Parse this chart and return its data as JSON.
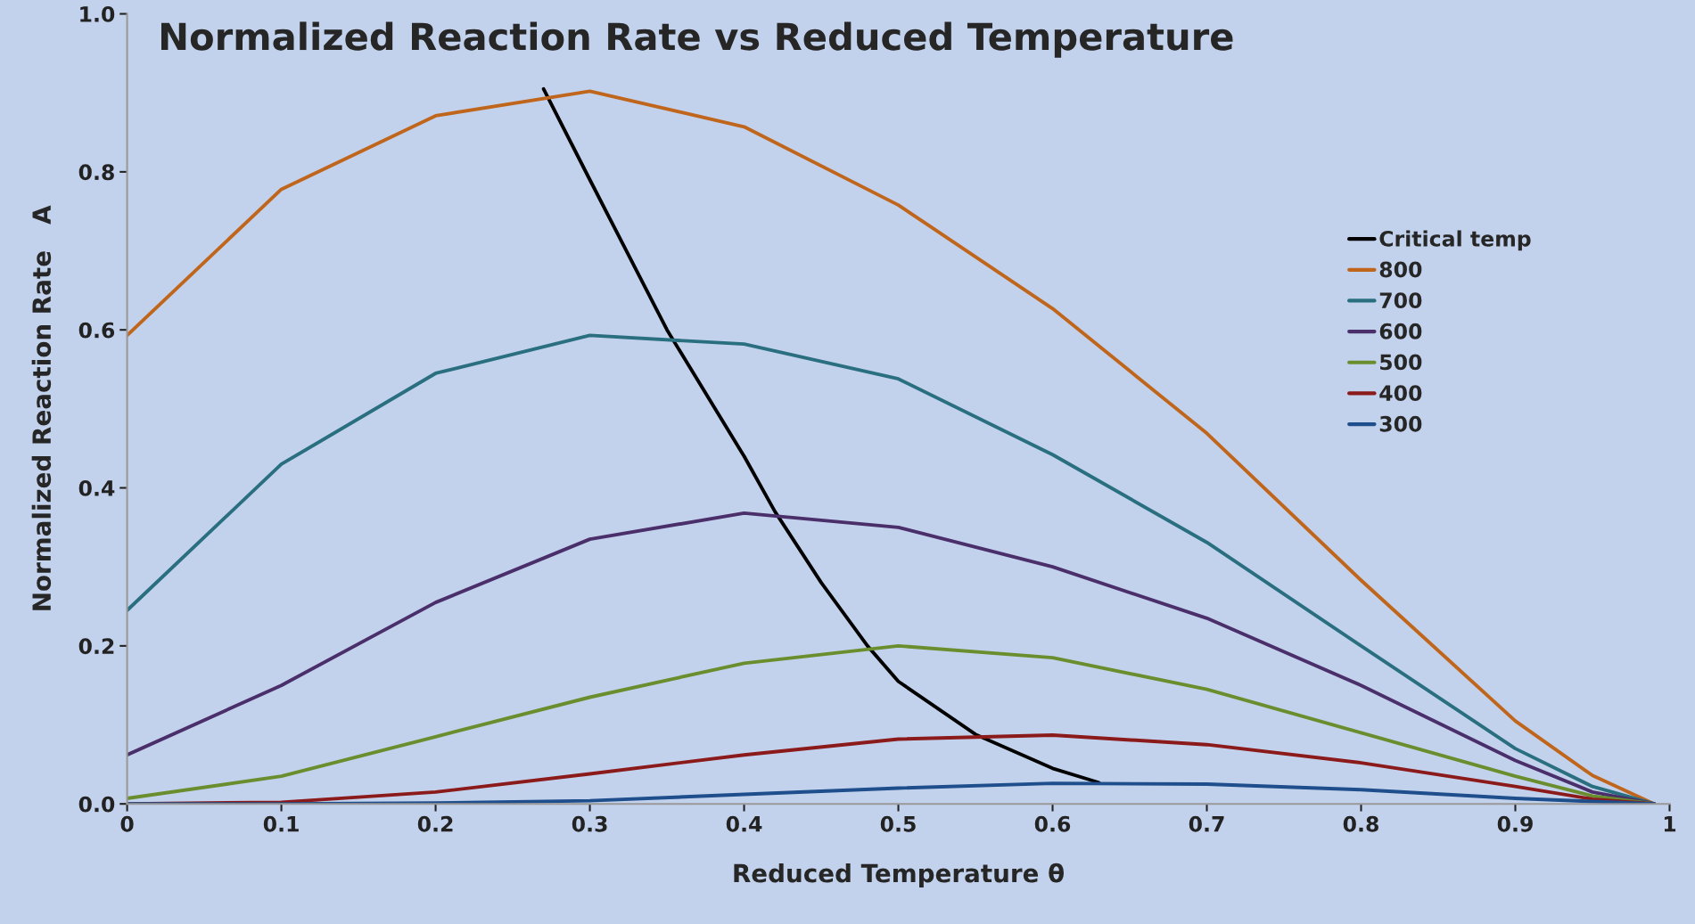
{
  "chart_data": {
    "type": "line",
    "title": "Normalized Reaction Rate vs Reduced Temperature",
    "xlabel": "Reduced Temperature θ",
    "ylabel": "Normalized Reaction Rate   A",
    "x": [
      0,
      0.1,
      0.2,
      0.3,
      0.4,
      0.5,
      0.6,
      0.7,
      0.8,
      0.9,
      0.95,
      0.99
    ],
    "series": [
      {
        "name": "Critical temp",
        "color": "#000000",
        "x": [
          0.27,
          0.3,
          0.35,
          0.4,
          0.42,
          0.45,
          0.48,
          0.5,
          0.55,
          0.6,
          0.63
        ],
        "values": [
          0.905,
          0.79,
          0.6,
          0.44,
          0.37,
          0.28,
          0.2,
          0.155,
          0.088,
          0.045,
          0.027
        ]
      },
      {
        "name": "800",
        "color": "#c0661c",
        "values": [
          0.593,
          0.778,
          0.871,
          0.902,
          0.857,
          0.758,
          0.627,
          0.469,
          0.283,
          0.105,
          0.036,
          0
        ]
      },
      {
        "name": "700",
        "color": "#2a6f80",
        "values": [
          0.245,
          0.43,
          0.545,
          0.593,
          0.582,
          0.538,
          0.442,
          0.331,
          0.2,
          0.07,
          0.022,
          0
        ]
      },
      {
        "name": "600",
        "color": "#4a2f6a",
        "values": [
          0.062,
          0.15,
          0.255,
          0.335,
          0.368,
          0.35,
          0.3,
          0.235,
          0.15,
          0.055,
          0.015,
          0
        ]
      },
      {
        "name": "500",
        "color": "#6a8e2e",
        "values": [
          0.007,
          0.035,
          0.085,
          0.135,
          0.178,
          0.2,
          0.185,
          0.145,
          0.09,
          0.035,
          0.01,
          0
        ]
      },
      {
        "name": "400",
        "color": "#8b1a1a",
        "values": [
          0,
          0.002,
          0.015,
          0.038,
          0.062,
          0.082,
          0.087,
          0.075,
          0.052,
          0.022,
          0.006,
          0
        ]
      },
      {
        "name": "300",
        "color": "#1f4e8c",
        "values": [
          0,
          0,
          0.001,
          0.004,
          0.012,
          0.02,
          0.026,
          0.025,
          0.018,
          0.007,
          0.003,
          0
        ]
      }
    ],
    "xlim": [
      0,
      1
    ],
    "ylim": [
      0,
      1
    ],
    "xticks": [
      0,
      0.1,
      0.2,
      0.3,
      0.4,
      0.5,
      0.6,
      0.7,
      0.8,
      0.9,
      1
    ],
    "yticks": [
      {
        "value": 0,
        "label": "0.0"
      },
      {
        "value": 0.2,
        "label": "0.2"
      },
      {
        "value": 0.4,
        "label": "0.4"
      },
      {
        "value": 0.6,
        "label": "0.6"
      },
      {
        "value": 0.8,
        "label": "0.8"
      },
      {
        "value": 1,
        "label": "1.0"
      }
    ],
    "grid": false,
    "legend": "right",
    "marker": "none",
    "line_style": "solid"
  }
}
